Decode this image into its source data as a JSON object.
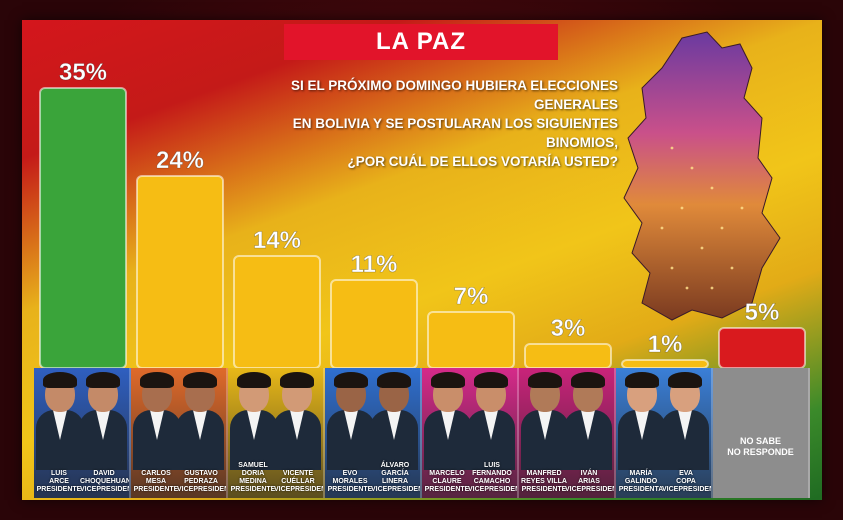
{
  "title": "LA PAZ",
  "question": "SI EL PRÓXIMO DOMINGO HUBIERA ELECCIONES GENERALES\nEN BOLIVIA Y SE POSTULARAN LOS SIGUIENTES BINOMIOS,\n¿POR CUÁL DE ELLOS VOTARÍA USTED?",
  "colors": {
    "green": "#3aa43a",
    "yellow": "#f6bd14",
    "red": "#d91a1e",
    "gray": "#8d8d8d"
  },
  "chart_data": {
    "type": "bar",
    "categories": [
      "Luis Arce / David Choquehuanca",
      "Carlos Mesa / Gustavo Pedraza",
      "Samuel Doria Medina / Vicente Cuéllar",
      "Evo Morales / Álvaro García Linera",
      "Marcelo Claure / Luis Fernando Camacho",
      "Manfred Reyes Villa / Iván Arias",
      "María Galindo / Eva Copa",
      "No sabe / No responde"
    ],
    "values": [
      35,
      24,
      14,
      11,
      7,
      3,
      1,
      5
    ],
    "value_labels": [
      "35%",
      "24%",
      "14%",
      "11%",
      "7%",
      "3%",
      "1%",
      "5%"
    ],
    "bar_colors": [
      "#3aa43a",
      "#f6bd14",
      "#f6bd14",
      "#f6bd14",
      "#f6bd14",
      "#f6bd14",
      "#f6bd14",
      "#d91a1e"
    ],
    "ylim": [
      0,
      35
    ]
  },
  "candidates": [
    {
      "a": "LUIS\nARCE\nPRESIDENTE",
      "b": "DAVID\nCHOQUEHUANCA\nVICEPRESIDENTE",
      "bg": "#2f5fc0"
    },
    {
      "a": "CARLOS\nMESA\nPRESIDENTE",
      "b": "GUSTAVO\nPEDRAZA\nVICEPRESIDENTE",
      "bg": "#e06a2a"
    },
    {
      "a": "SAMUEL\nDORIA MEDINA\nPRESIDENTE",
      "b": "VICENTE\nCUÉLLAR\nVICEPRESIDENTE",
      "bg": "#e8b818"
    },
    {
      "a": "EVO\nMORALES\nPRESIDENTE",
      "b": "ÁLVARO\nGARCÍA LINERA\nVICEPRESIDENTE",
      "bg": "#2f6fd0"
    },
    {
      "a": "MARCELO\nCLAURE\nPRESIDENTE",
      "b": "LUIS FERNANDO\nCAMACHO\nVICEPRESIDENTE",
      "bg": "#d62a8a"
    },
    {
      "a": "MANFRED\nREYES VILLA\nPRESIDENTE",
      "b": "IVÁN\nARIAS\nVICEPRESIDENTE",
      "bg": "#c9237a"
    },
    {
      "a": "MARÍA\nGALINDO\nPRESIDENTA",
      "b": "EVA\nCOPA\nVICEPRESIDENTA",
      "bg": "#3a7fd8"
    }
  ],
  "no_response": "NO SABE\nNO RESPONDE"
}
